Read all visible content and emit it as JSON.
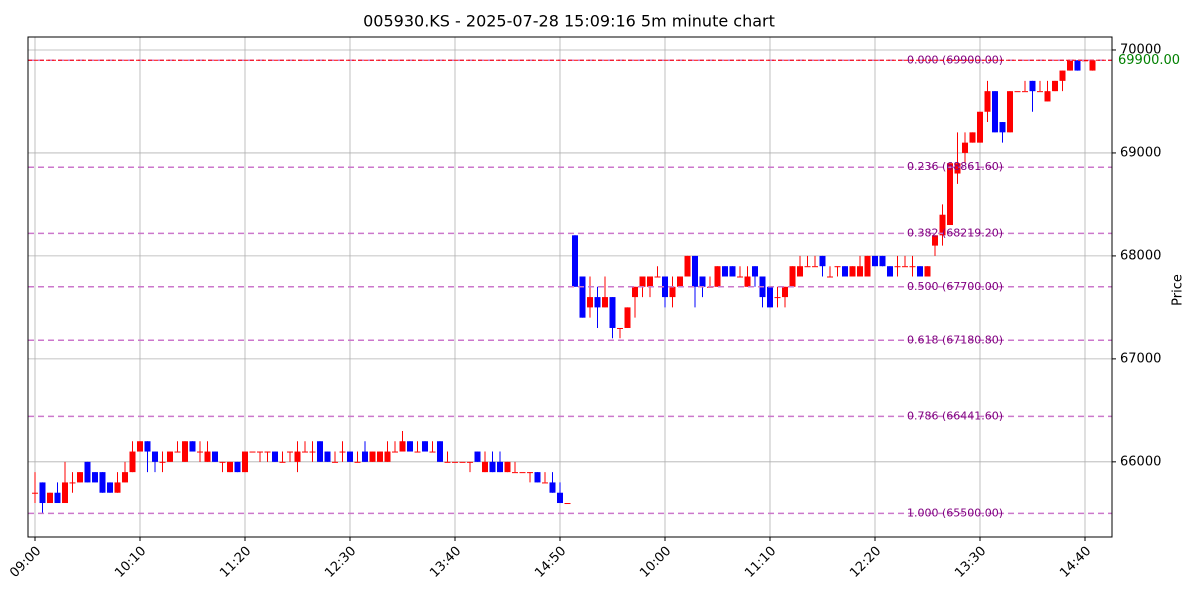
{
  "chart_data": {
    "type": "candlestick",
    "title": "005930.KS - 2025-07-28 15:09:16 5m minute chart",
    "y_label": "Price",
    "up_color": "red",
    "down_color": "blue",
    "grid": true,
    "ylim": [
      65270,
      70126
    ],
    "yticks": [
      66000,
      67000,
      68000,
      69000,
      70000
    ],
    "categories": [
      "09:00",
      null,
      null,
      null,
      null,
      null,
      null,
      null,
      null,
      null,
      null,
      null,
      null,
      null,
      "10:10",
      null,
      null,
      null,
      null,
      null,
      null,
      null,
      null,
      null,
      null,
      null,
      null,
      null,
      "11:20",
      null,
      null,
      null,
      null,
      null,
      null,
      null,
      null,
      null,
      null,
      null,
      null,
      null,
      "12:30",
      null,
      null,
      null,
      null,
      null,
      null,
      null,
      null,
      null,
      null,
      null,
      null,
      null,
      "13:40",
      null,
      null,
      null,
      null,
      null,
      null,
      null,
      null,
      null,
      null,
      null,
      null,
      null,
      "14:50",
      null,
      null,
      null,
      null,
      null,
      null,
      null,
      null,
      null,
      null,
      null,
      null,
      null,
      "10:00",
      null,
      null,
      null,
      null,
      null,
      null,
      null,
      null,
      null,
      null,
      null,
      null,
      null,
      "11:10",
      null,
      null,
      null,
      null,
      null,
      null,
      null,
      null,
      null,
      null,
      null,
      null,
      null,
      "12:20",
      null,
      null,
      null,
      null,
      null,
      null,
      null,
      null,
      null,
      null,
      null,
      null,
      null,
      "13:30",
      null,
      null,
      null,
      null,
      null,
      null,
      null,
      null,
      null,
      null,
      null,
      null,
      null,
      "14:40",
      null
    ],
    "open": [
      65700,
      65800,
      65600,
      65700,
      65600,
      65800,
      65800,
      66000,
      65900,
      65900,
      65800,
      65700,
      65800,
      65900,
      66100,
      66200,
      66100,
      66000,
      66000,
      66100,
      66000,
      66200,
      66100,
      66000,
      66100,
      66000,
      65900,
      66000,
      65900,
      66100,
      66100,
      66100,
      66100,
      66000,
      66100,
      66000,
      66100,
      66100,
      66200,
      66100,
      66000,
      66100,
      66100,
      66000,
      66100,
      66000,
      66000,
      66000,
      66100,
      66100,
      66200,
      66100,
      66200,
      66100,
      66200,
      66000,
      66000,
      66000,
      66000,
      66100,
      65900,
      66000,
      66000,
      65900,
      65900,
      65900,
      65900,
      65900,
      65800,
      65800,
      65700,
      65600,
      68200,
      67800,
      67500,
      67600,
      67500,
      67600,
      67300,
      67300,
      67600,
      67700,
      67700,
      67800,
      67800,
      67600,
      67700,
      67800,
      68000,
      67800,
      67700,
      67700,
      67900,
      67900,
      67800,
      67700,
      67900,
      67800,
      67700,
      67600,
      67600,
      67700,
      67800,
      67900,
      67900,
      68000,
      67800,
      67900,
      67900,
      67800,
      67800,
      67800,
      68000,
      68000,
      67900,
      67900,
      67900,
      67900,
      67900,
      67800,
      68100,
      68200,
      68300,
      68800,
      69000,
      69100,
      69100,
      69400,
      69600,
      69300,
      69200,
      69600,
      69600,
      69700,
      69600,
      69500,
      69600,
      69700,
      69800,
      69900,
      69900,
      69800
    ],
    "high": [
      65900,
      65800,
      65700,
      65800,
      66000,
      65900,
      65900,
      66000,
      65900,
      65900,
      65800,
      65900,
      66000,
      66200,
      66200,
      66200,
      66100,
      66100,
      66100,
      66200,
      66200,
      66200,
      66200,
      66200,
      66100,
      66000,
      66000,
      66000,
      66100,
      66100,
      66100,
      66100,
      66100,
      66100,
      66100,
      66200,
      66200,
      66200,
      66200,
      66100,
      66100,
      66200,
      66100,
      66100,
      66200,
      66100,
      66100,
      66200,
      66200,
      66300,
      66200,
      66200,
      66200,
      66200,
      66200,
      66100,
      66000,
      66000,
      66000,
      66100,
      66100,
      66100,
      66100,
      66000,
      66000,
      65900,
      65900,
      65900,
      65900,
      65900,
      65800,
      65600,
      68200,
      67800,
      67800,
      67700,
      67800,
      67600,
      67300,
      67500,
      67700,
      67800,
      67800,
      67900,
      67800,
      67800,
      67800,
      68000,
      68000,
      67800,
      67800,
      67900,
      67900,
      67900,
      67900,
      67900,
      67900,
      67800,
      67700,
      67700,
      67700,
      67900,
      68000,
      68000,
      68000,
      68000,
      67900,
      67900,
      67900,
      67900,
      68000,
      68000,
      68000,
      68000,
      67900,
      68000,
      68000,
      68000,
      67900,
      67900,
      68200,
      68500,
      68900,
      69200,
      69200,
      69200,
      69400,
      69700,
      69600,
      69300,
      69600,
      69600,
      69700,
      69700,
      69700,
      69700,
      69700,
      69800,
      69900,
      69900,
      69900,
      69900
    ],
    "low": [
      65600,
      65500,
      65600,
      65600,
      65600,
      65700,
      65800,
      65800,
      65800,
      65700,
      65700,
      65700,
      65800,
      65900,
      66100,
      65900,
      65900,
      65900,
      66000,
      66100,
      66000,
      66100,
      66000,
      66000,
      66000,
      65900,
      65900,
      65900,
      65900,
      66100,
      66000,
      66000,
      66000,
      66000,
      66000,
      65900,
      66100,
      66000,
      66000,
      66000,
      66000,
      66000,
      66000,
      66000,
      66000,
      66000,
      66000,
      66000,
      66100,
      66100,
      66100,
      66100,
      66100,
      66100,
      66000,
      66000,
      66000,
      66000,
      65900,
      66000,
      65900,
      65900,
      65900,
      65900,
      65900,
      65900,
      65800,
      65800,
      65800,
      65700,
      65600,
      65600,
      67700,
      67400,
      67400,
      67300,
      67500,
      67200,
      67200,
      67300,
      67400,
      67600,
      67600,
      67800,
      67500,
      67500,
      67700,
      67800,
      67500,
      67600,
      67700,
      67700,
      67800,
      67800,
      67800,
      67700,
      67700,
      67500,
      67500,
      67500,
      67500,
      67700,
      67800,
      67900,
      67900,
      67800,
      67800,
      67800,
      67800,
      67800,
      67800,
      67800,
      67900,
      67900,
      67800,
      67800,
      67900,
      67800,
      67800,
      67800,
      68000,
      68100,
      68300,
      68700,
      68900,
      69100,
      69100,
      69300,
      69200,
      69100,
      69200,
      69600,
      69600,
      69400,
      69600,
      69500,
      69600,
      69600,
      69800,
      69800,
      69900,
      69800
    ],
    "close": [
      65700,
      65600,
      65700,
      65600,
      65800,
      65800,
      65900,
      65800,
      65800,
      65700,
      65700,
      65800,
      65900,
      66100,
      66200,
      66100,
      66000,
      66000,
      66100,
      66100,
      66200,
      66100,
      66100,
      66100,
      66000,
      66000,
      66000,
      65900,
      66100,
      66100,
      66100,
      66100,
      66000,
      66000,
      66100,
      66100,
      66100,
      66100,
      66000,
      66000,
      66000,
      66100,
      66000,
      66000,
      66000,
      66100,
      66100,
      66100,
      66100,
      66200,
      66100,
      66100,
      66100,
      66100,
      66000,
      66000,
      66000,
      66000,
      66000,
      66000,
      66000,
      65900,
      65900,
      66000,
      65900,
      65900,
      65900,
      65800,
      65800,
      65700,
      65600,
      65600,
      67700,
      67400,
      67600,
      67500,
      67600,
      67300,
      67300,
      67500,
      67700,
      67800,
      67800,
      67800,
      67600,
      67700,
      67800,
      68000,
      67700,
      67700,
      67700,
      67900,
      67800,
      67800,
      67800,
      67800,
      67800,
      67600,
      67500,
      67600,
      67700,
      67900,
      67900,
      67900,
      67900,
      67900,
      67800,
      67900,
      67800,
      67900,
      67900,
      68000,
      67900,
      67900,
      67800,
      67900,
      67900,
      67900,
      67800,
      67900,
      68200,
      68400,
      68900,
      68900,
      69100,
      69200,
      69400,
      69600,
      69200,
      69200,
      69600,
      69600,
      69600,
      69600,
      69600,
      69600,
      69700,
      69800,
      69900,
      69800,
      69900,
      69900
    ],
    "fib_color": "#cc77cc",
    "fib_levels": [
      {
        "value": 69900,
        "label": "0.000 (69900.00)"
      },
      {
        "value": 68861.6,
        "label": "0.236 (68861.60)"
      },
      {
        "value": 68219.2,
        "label": "0.382 (68219.20)"
      },
      {
        "value": 67700,
        "label": "0.500 (67700.00)"
      },
      {
        "value": 67180.8,
        "label": "0.618 (67180.80)"
      },
      {
        "value": 66441.6,
        "label": "0.786 (66441.60)"
      },
      {
        "value": 65500,
        "label": "1.000 (65500.00)"
      }
    ],
    "last_price": {
      "value": 69900,
      "label": "69900.00"
    },
    "last_price_color": "red"
  }
}
